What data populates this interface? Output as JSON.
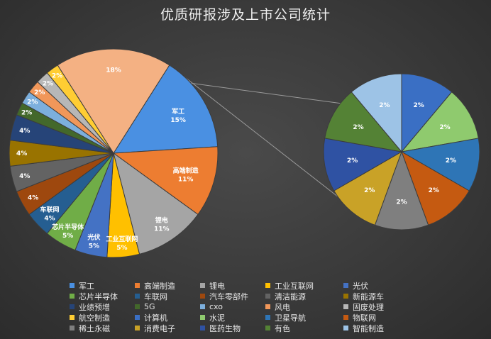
{
  "chart_data": {
    "type": "pie-of-pie",
    "title": "优质研报涉及上市公司统计",
    "slices": [
      {
        "name": "军工",
        "value": 15,
        "label": "15%",
        "color": "#4a90e2"
      },
      {
        "name": "高端制造",
        "value": 11,
        "label": "11%",
        "color": "#ed7d31"
      },
      {
        "name": "锂电",
        "value": 11,
        "label": "11%",
        "color": "#a5a5a5"
      },
      {
        "name": "工业互联网",
        "value": 5,
        "label": "5%",
        "color": "#ffc000"
      },
      {
        "name": "光伏",
        "value": 5,
        "label": "5%",
        "color": "#4472c4"
      },
      {
        "name": "芯片半导体",
        "value": 5,
        "label": "5%",
        "color": "#70ad47"
      },
      {
        "name": "车联网",
        "value": 4,
        "label": "4%",
        "color": "#255e91"
      },
      {
        "name": "汽车零部件",
        "value": 4,
        "label": "4%",
        "color": "#9e480e"
      },
      {
        "name": "清洁能源",
        "value": 4,
        "label": "4%",
        "color": "#636363"
      },
      {
        "name": "新能源车",
        "value": 4,
        "label": "4%",
        "color": "#997300"
      },
      {
        "name": "业绩预增",
        "value": 4,
        "label": "4%",
        "color": "#264478"
      },
      {
        "name": "5G",
        "value": 2,
        "label": "2%",
        "color": "#43682b"
      },
      {
        "name": "cxo",
        "value": 2,
        "label": "2%",
        "color": "#7cafdd"
      },
      {
        "name": "风电",
        "value": 2,
        "label": "2%",
        "color": "#f1975a"
      },
      {
        "name": "固废处理",
        "value": 2,
        "label": "2%",
        "color": "#b7b7b7"
      },
      {
        "name": "航空制造",
        "value": 2,
        "label": "2%",
        "color": "#ffcd33"
      }
    ],
    "secondary_pie_total": {
      "value": 18,
      "label": "18%",
      "color": "#f4b183"
    },
    "secondary_slices": [
      {
        "name": "计算机",
        "value": 2,
        "label": "2%",
        "color": "#3a6fc4"
      },
      {
        "name": "水泥",
        "value": 2,
        "label": "2%",
        "color": "#8fca6e"
      },
      {
        "name": "卫星导航",
        "value": 2,
        "label": "2%",
        "color": "#2e75b6"
      },
      {
        "name": "物联网",
        "value": 2,
        "label": "2%",
        "color": "#c55a11"
      },
      {
        "name": "稀土永磁",
        "value": 2,
        "label": "2%",
        "color": "#7f7f7f"
      },
      {
        "name": "消费电子",
        "value": 2,
        "label": "2%",
        "color": "#c9a227"
      },
      {
        "name": "医药生物",
        "value": 2,
        "label": "2%",
        "color": "#2f52a3"
      },
      {
        "name": "有色",
        "value": 2,
        "label": "2%",
        "color": "#548235"
      },
      {
        "name": "智能制造",
        "value": 2,
        "label": "2%",
        "color": "#9dc3e6"
      }
    ],
    "legend": [
      "军工",
      "高端制造",
      "锂电",
      "工业互联网",
      "光伏",
      "芯片半导体",
      "车联网",
      "汽车零部件",
      "清洁能源",
      "新能源车",
      "业绩预增",
      "5G",
      "cxo",
      "风电",
      "固废处理",
      "航空制造",
      "计算机",
      "水泥",
      "卫星导航",
      "物联网",
      "稀土永磁",
      "消费电子",
      "医药生物",
      "有色",
      "智能制造"
    ]
  }
}
